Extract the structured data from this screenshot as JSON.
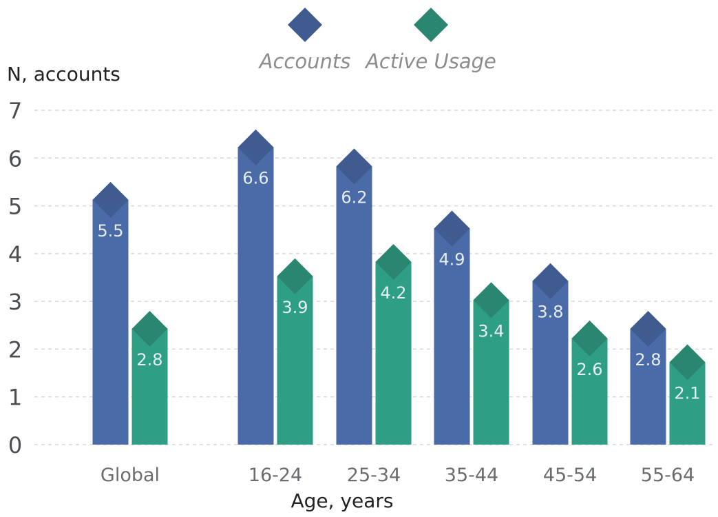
{
  "chart_data": {
    "type": "bar",
    "ylabel": "N, accounts",
    "xlabel": "Age, years",
    "ylim": [
      0,
      7
    ],
    "yticks": [
      "0",
      "1",
      "2",
      "3",
      "4",
      "5",
      "6",
      "7"
    ],
    "categories": [
      "Global",
      "16-24",
      "25-34",
      "35-44",
      "45-54",
      "55-64"
    ],
    "grid": true,
    "legend_position": "top-center",
    "series": [
      {
        "name": "Accounts",
        "color": "#4a6aa8",
        "marker_color": "#3f5b90",
        "values": [
          5.5,
          6.6,
          6.2,
          4.9,
          3.8,
          2.8
        ],
        "labels": [
          "5.5",
          "6.6",
          "6.2",
          "4.9",
          "3.8",
          "2.8"
        ]
      },
      {
        "name": "Active Usage",
        "color": "#2e9e85",
        "marker_color": "#2a8671",
        "values": [
          2.8,
          3.9,
          4.2,
          3.4,
          2.6,
          2.1
        ],
        "labels": [
          "2.8",
          "3.9",
          "4.2",
          "3.4",
          "2.6",
          "2.1"
        ]
      }
    ]
  }
}
